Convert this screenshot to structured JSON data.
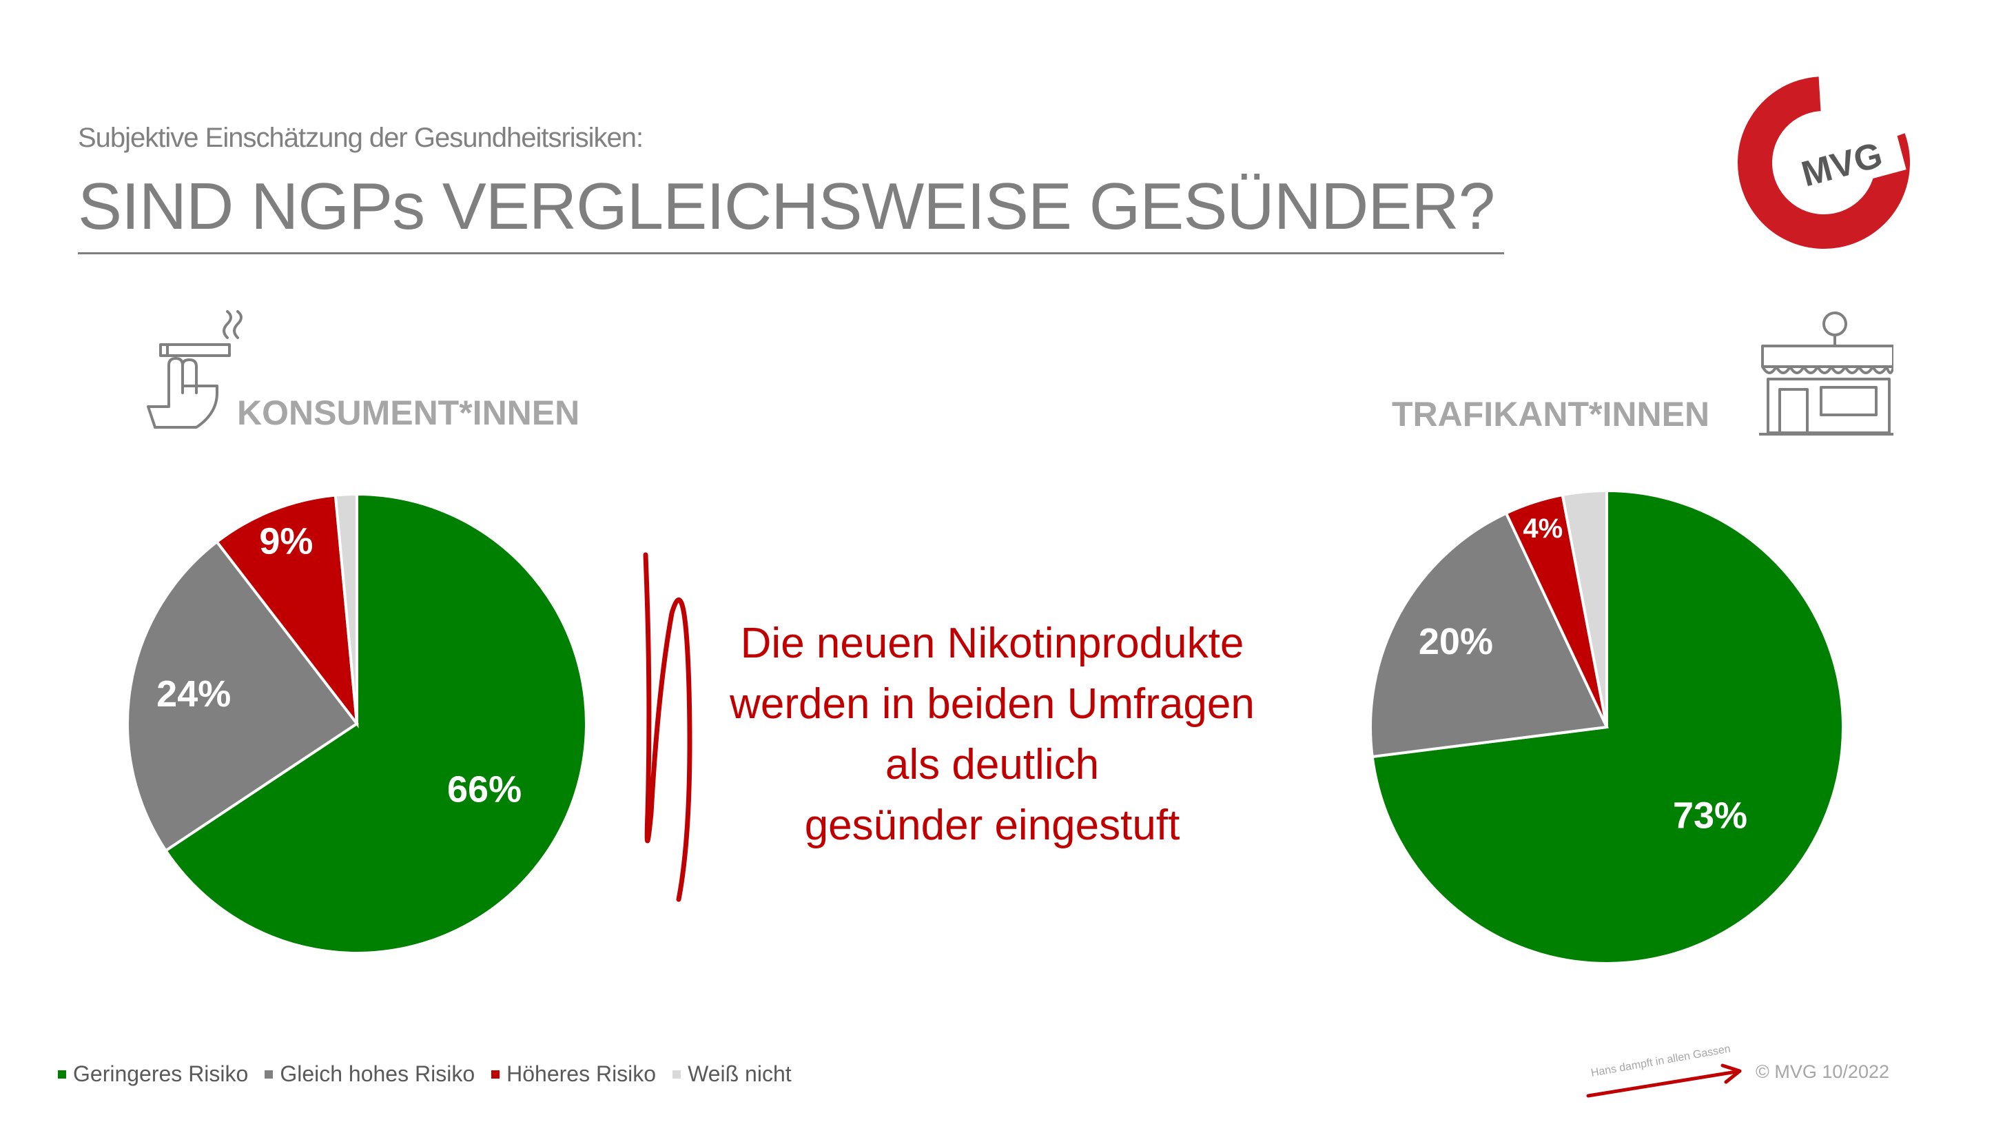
{
  "header": {
    "subtitle": "Subjektive Einschätzung der Gesundheitsrisiken:",
    "title": "SIND NGPs VERGLEICHSWEISE GESÜNDER?"
  },
  "logo": {
    "text": "MVG",
    "color": "#cc1b22"
  },
  "groups": {
    "left": {
      "label": "KONSUMENT*INNEN",
      "icon": "hand-cigarette-icon"
    },
    "right": {
      "label": "TRAFIKANT*INNEN",
      "icon": "kiosk-shop-icon"
    }
  },
  "message": {
    "lines": [
      "Die neuen Nikotinprodukte",
      "werden in beiden Umfragen",
      "als deutlich",
      "gesünder eingestuft"
    ]
  },
  "legend": {
    "items": [
      {
        "label": "Geringeres Risiko",
        "color": "#008000"
      },
      {
        "label": "Gleich hohes Risiko",
        "color": "#808080"
      },
      {
        "label": "Höheres Risiko",
        "color": "#c00000"
      },
      {
        "label": "Weiß nicht",
        "color": "#d9d9d9"
      }
    ]
  },
  "footer": {
    "copyright": "© MVG 10/2022",
    "slogan": "Hans dampft in allen Gassen"
  },
  "chart_data": [
    {
      "type": "pie",
      "title": "KONSUMENT*INNEN",
      "categories": [
        "Geringeres Risiko",
        "Gleich hohes Risiko",
        "Höheres Risiko",
        "Weiß nicht"
      ],
      "values": [
        66,
        24,
        9,
        1.5
      ],
      "labels": [
        "66%",
        "24%",
        "9%",
        ""
      ],
      "colors": [
        "#008000",
        "#808080",
        "#c00000",
        "#d9d9d9"
      ]
    },
    {
      "type": "pie",
      "title": "TRAFIKANT*INNEN",
      "categories": [
        "Geringeres Risiko",
        "Gleich hohes Risiko",
        "Höheres Risiko",
        "Weiß nicht"
      ],
      "values": [
        73,
        20,
        4,
        3
      ],
      "labels": [
        "73%",
        "20%",
        "4%",
        ""
      ],
      "colors": [
        "#008000",
        "#808080",
        "#c00000",
        "#d9d9d9"
      ]
    }
  ]
}
